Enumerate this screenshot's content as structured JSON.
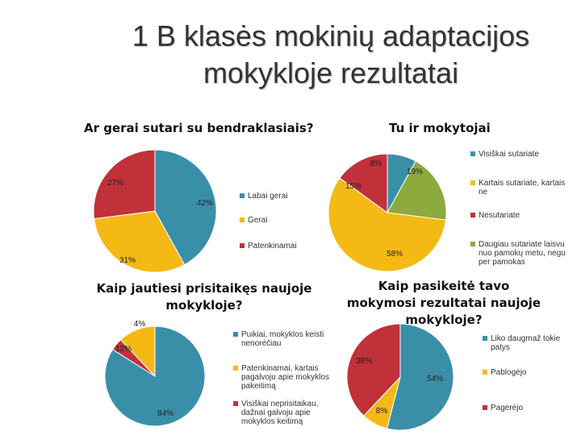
{
  "slide": {
    "title_line1": "1 B klasės mokinių adaptacijos",
    "title_line2": "mokykloje rezultatai"
  },
  "chart_data": [
    {
      "type": "pie",
      "title": "Ar gerai sutari su bendraklasiais?",
      "categories": [
        "Labai gerai",
        "Gerai",
        "Patenkinamai"
      ],
      "values": [
        42,
        31,
        27
      ],
      "labels": [
        "42%",
        "31%",
        "27%"
      ],
      "colors": [
        "#3a8fa8",
        "#f5b915",
        "#c0313a"
      ],
      "legend": "right"
    },
    {
      "type": "pie",
      "title": "Tu ir mokytojai",
      "categories": [
        "Visiškai sutariate",
        "Kartais sutariate, kartais ne",
        "Nesutariate",
        "Daugiau sutariate laisvu nuo pamokų metu, negu per pamokas"
      ],
      "values": [
        8,
        58,
        15,
        19
      ],
      "labels": [
        "8%",
        "58%",
        "15%",
        "19%"
      ],
      "colors": [
        "#3a8fa8",
        "#f5b915",
        "#c0313a",
        "#8caa3d"
      ],
      "legend": "right"
    },
    {
      "type": "pie",
      "title": "Kaip jautiesi prisitaikęs naujoje mokykloje?",
      "categories": [
        "Puikiai, mokyklos keisti nenorėčiau",
        "Patenkinamai, kartais pagalvoju apie mokyklos pakeitimą",
        "Visiškai neprisitaikau, dažnai galvoju apie mokyklos keitimą"
      ],
      "values": [
        84,
        12,
        4
      ],
      "labels": [
        "84%",
        "12%",
        "4%"
      ],
      "colors": [
        "#3a8fa8",
        "#f5b915",
        "#c0313a"
      ],
      "legend": "right"
    },
    {
      "type": "pie",
      "title": "Kaip pasikeitė tavo mokymosi rezultatai naujoje mokykloje?",
      "categories": [
        "Liko daugmaž tokie patys",
        "Pablogėjo",
        "Pagerėjo"
      ],
      "values": [
        54,
        8,
        38
      ],
      "labels": [
        "54%",
        "8%",
        "38%"
      ],
      "colors": [
        "#3a8fa8",
        "#f5b915",
        "#c0313a"
      ],
      "legend": "right"
    }
  ]
}
